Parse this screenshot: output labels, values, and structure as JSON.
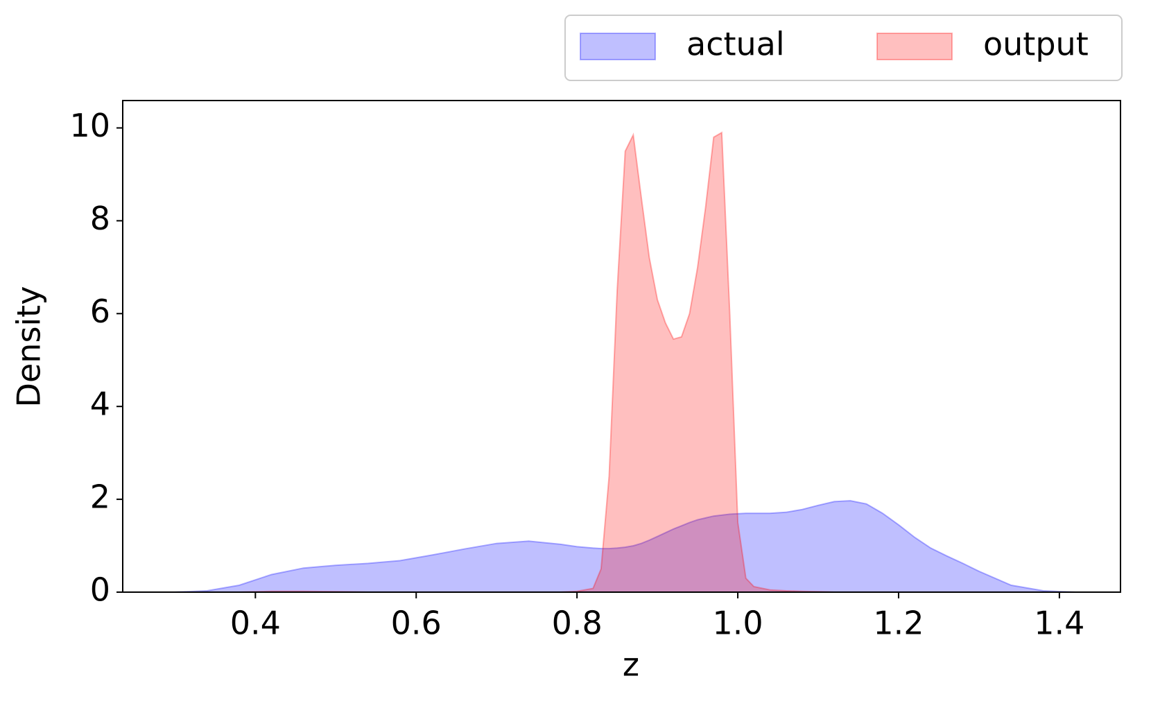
{
  "chart_data": {
    "type": "area",
    "xlabel": "z",
    "ylabel": "Density",
    "x": [
      0.3,
      0.34,
      0.38,
      0.42,
      0.46,
      0.5,
      0.54,
      0.58,
      0.62,
      0.66,
      0.7,
      0.74,
      0.78,
      0.8,
      0.82,
      0.83,
      0.84,
      0.85,
      0.86,
      0.87,
      0.88,
      0.89,
      0.9,
      0.91,
      0.92,
      0.93,
      0.94,
      0.95,
      0.96,
      0.97,
      0.98,
      0.99,
      1.0,
      1.01,
      1.02,
      1.04,
      1.06,
      1.08,
      1.1,
      1.12,
      1.14,
      1.16,
      1.18,
      1.2,
      1.22,
      1.24,
      1.26,
      1.28,
      1.3,
      1.34,
      1.38,
      1.42,
      1.44
    ],
    "series": [
      {
        "name": "actual",
        "color": "#0000ff",
        "values": [
          0,
          0.03,
          0.15,
          0.38,
          0.52,
          0.58,
          0.62,
          0.68,
          0.8,
          0.93,
          1.05,
          1.1,
          1.03,
          0.98,
          0.95,
          0.94,
          0.94,
          0.95,
          0.97,
          1.0,
          1.05,
          1.12,
          1.2,
          1.28,
          1.36,
          1.43,
          1.5,
          1.56,
          1.6,
          1.64,
          1.66,
          1.68,
          1.69,
          1.7,
          1.7,
          1.7,
          1.72,
          1.78,
          1.87,
          1.95,
          1.97,
          1.9,
          1.7,
          1.45,
          1.18,
          0.95,
          0.78,
          0.62,
          0.45,
          0.15,
          0.03,
          0,
          0
        ]
      },
      {
        "name": "output",
        "color": "#ff0000",
        "values": [
          0,
          0,
          0,
          0.02,
          0.02,
          0.01,
          0,
          0,
          0,
          0,
          0,
          0,
          0,
          0.02,
          0.08,
          0.5,
          2.5,
          6.5,
          9.5,
          9.85,
          8.5,
          7.2,
          6.3,
          5.8,
          5.45,
          5.5,
          6.0,
          7.0,
          8.3,
          9.8,
          9.9,
          6.0,
          1.5,
          0.3,
          0.12,
          0.05,
          0.03,
          0.02,
          0.01,
          0,
          0,
          0,
          0,
          0,
          0,
          0,
          0,
          0,
          0,
          0,
          0,
          0,
          0
        ]
      }
    ],
    "xlim": [
      0.235,
      1.476
    ],
    "ylim": [
      0,
      10.59
    ],
    "xticks": [
      0.4,
      0.6,
      0.8,
      {
        "value": 1.0,
        "label": "1.0"
      },
      1.2,
      1.4
    ],
    "yticks": [
      0,
      2,
      4,
      6,
      8,
      10
    ],
    "legend": "upper-right-outside"
  }
}
